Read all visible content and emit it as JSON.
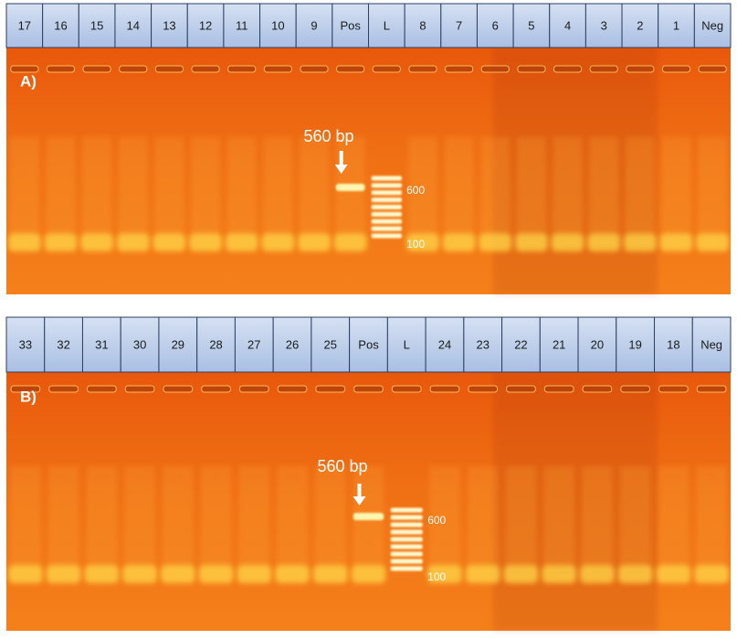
{
  "panels": [
    {
      "label": "A)",
      "lanes": [
        "17",
        "16",
        "15",
        "14",
        "13",
        "12",
        "11",
        "10",
        "9",
        "Pos",
        "L",
        "8",
        "7",
        "6",
        "5",
        "4",
        "3",
        "2",
        "1",
        "Neg"
      ],
      "annotation": "560 bp",
      "ladder_labels": [
        "600",
        "100"
      ]
    },
    {
      "label": "B)",
      "lanes": [
        "33",
        "32",
        "31",
        "30",
        "29",
        "28",
        "27",
        "26",
        "25",
        "Pos",
        "L",
        "24",
        "23",
        "22",
        "21",
        "20",
        "19",
        "18",
        "Neg"
      ],
      "annotation": "560 bp",
      "ladder_labels": [
        "600",
        "100"
      ]
    }
  ]
}
